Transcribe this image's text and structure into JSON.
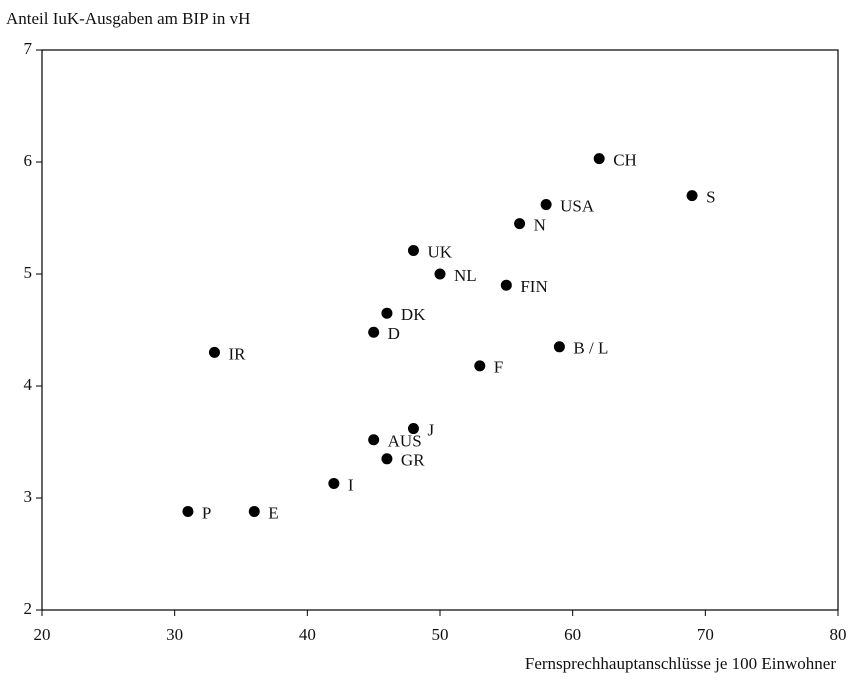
{
  "chart_data": {
    "type": "scatter",
    "title": "Anteil IuK-Ausgaben am BIP in vH",
    "x_label": "Fernsprechhauptanschlüsse je 100 Einwohner",
    "labels": [
      "CH",
      "S",
      "USA",
      "N",
      "UK",
      "NL",
      "FIN",
      "DK",
      "D",
      "IR",
      "B / L",
      "F",
      "J",
      "AUS",
      "GR",
      "I",
      "P",
      "E"
    ],
    "x": [
      62,
      69,
      58,
      56,
      48,
      50,
      55,
      46,
      45,
      33,
      59,
      53,
      48,
      45,
      46,
      42,
      31,
      36
    ],
    "values": [
      6.03,
      5.7,
      5.62,
      5.45,
      5.21,
      5.0,
      4.9,
      4.65,
      4.48,
      4.3,
      4.35,
      4.18,
      3.62,
      3.52,
      3.35,
      3.13,
      2.88,
      2.88
    ],
    "color": "#000000",
    "xlim": [
      20,
      80
    ],
    "xticks": [
      20,
      30,
      40,
      50,
      60,
      70,
      80
    ],
    "ylim": [
      2,
      7
    ],
    "yticks": [
      2,
      3,
      4,
      5,
      6,
      7
    ]
  }
}
